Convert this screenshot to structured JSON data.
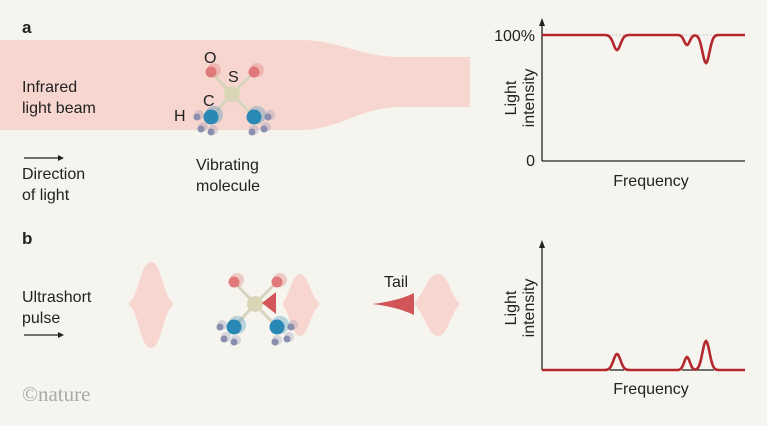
{
  "panel_a": {
    "letter": "a",
    "beam_label_1": "Infrared",
    "beam_label_2": "light beam",
    "direction_1": "Direction",
    "direction_2": "of light",
    "molecule_1": "Vibrating",
    "molecule_2": "molecule",
    "atom_o": "O",
    "atom_s": "S",
    "atom_c": "C",
    "atom_h": "H",
    "chart": {
      "y_top": "100%",
      "y_zero": "0",
      "ylabel_1": "Light",
      "ylabel_2": "intensity",
      "xlabel": "Frequency"
    }
  },
  "panel_b": {
    "letter": "b",
    "pulse_1": "Ultrashort",
    "pulse_2": "pulse",
    "tail": "Tail",
    "chart": {
      "ylabel_1": "Light",
      "ylabel_2": "intensity",
      "xlabel": "Frequency"
    }
  },
  "logo": "©nature",
  "colors": {
    "beam": "#f6d6cf",
    "curve": "#b3282d",
    "tail": "#d2555a",
    "oxygen": "#e07a7a",
    "sulfur": "#d9d6b6",
    "carbon": "#2a88b4",
    "hydrogen": "#8a8fb0"
  }
}
